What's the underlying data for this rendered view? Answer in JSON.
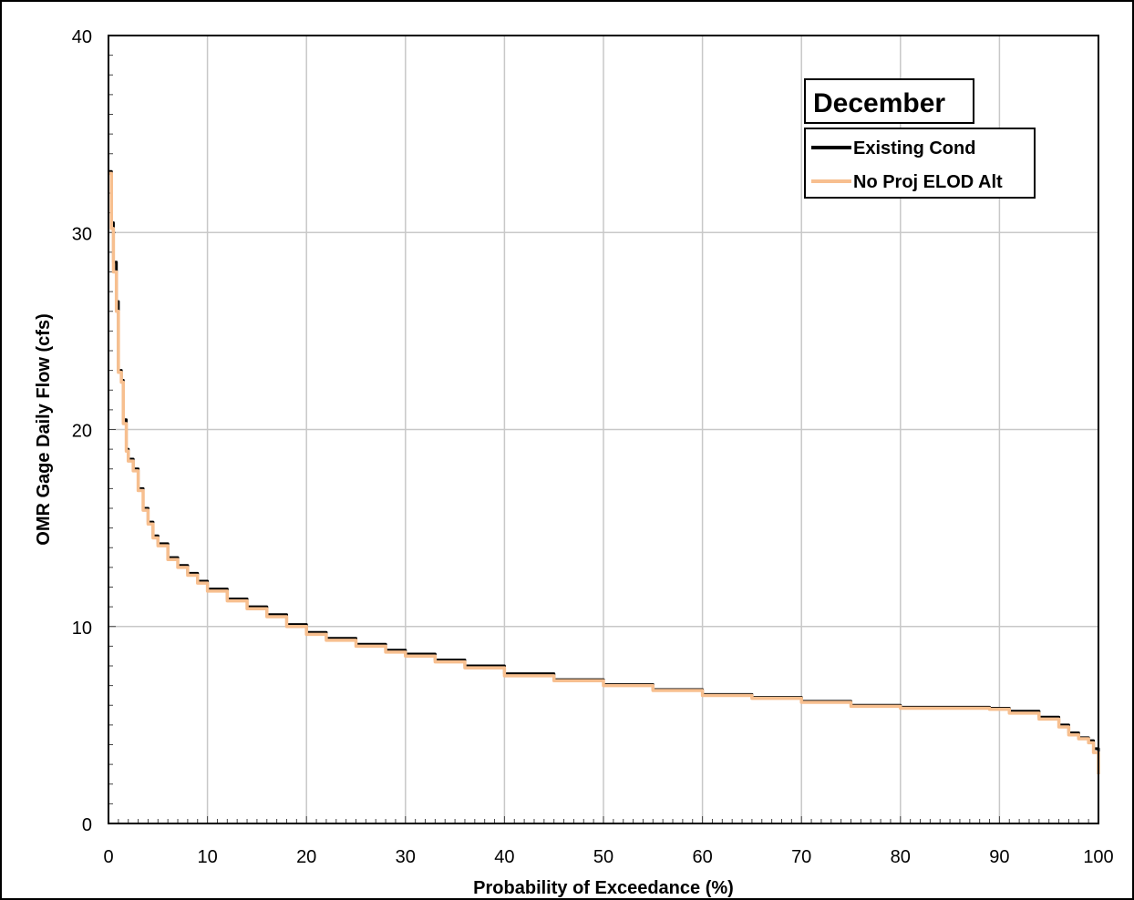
{
  "chart_data": {
    "type": "line",
    "title": "December",
    "xlabel": "Probability of Exceedance (%)",
    "ylabel": "OMR Gage Daily Flow (cfs)",
    "xlim": [
      0,
      100
    ],
    "ylim": [
      0,
      40
    ],
    "x_ticks": [
      "0",
      "10",
      "20",
      "30",
      "40",
      "50",
      "60",
      "70",
      "80",
      "90",
      "100"
    ],
    "y_ticks": [
      "0",
      "10",
      "20",
      "30",
      "40"
    ],
    "grid": true,
    "legend": "top-right",
    "series": [
      {
        "name": "Existing Cond",
        "color": "#000000",
        "x": [
          0,
          0.3,
          0.5,
          0.8,
          1.0,
          1.3,
          1.5,
          1.8,
          2.0,
          2.5,
          3.0,
          3.5,
          4.0,
          4.5,
          5.0,
          6.0,
          7.0,
          8.0,
          9.0,
          10,
          12,
          14,
          16,
          18,
          20,
          22,
          25,
          28,
          30,
          33,
          36,
          40,
          45,
          50,
          55,
          60,
          65,
          70,
          75,
          80,
          85,
          89,
          91,
          94,
          96,
          97,
          98,
          99,
          99.5,
          100
        ],
        "y": [
          33.1,
          30.5,
          28.5,
          26.5,
          23.0,
          22.5,
          20.5,
          19.0,
          18.5,
          18.0,
          17.0,
          16.0,
          15.3,
          14.6,
          14.2,
          13.5,
          13.1,
          12.7,
          12.3,
          11.9,
          11.4,
          11.0,
          10.6,
          10.1,
          9.7,
          9.4,
          9.1,
          8.8,
          8.6,
          8.3,
          8.0,
          7.6,
          7.3,
          7.05,
          6.8,
          6.55,
          6.4,
          6.2,
          6.0,
          5.9,
          5.9,
          5.85,
          5.7,
          5.4,
          5.0,
          4.6,
          4.35,
          4.2,
          3.8,
          2.6
        ]
      },
      {
        "name": "No Proj ELOD Alt",
        "color": "#f7bf8f",
        "x": [
          0,
          0.3,
          0.5,
          0.8,
          1.0,
          1.3,
          1.5,
          1.8,
          2.0,
          2.5,
          3.0,
          3.5,
          4.0,
          4.5,
          5.0,
          6.0,
          7.0,
          8.0,
          9.0,
          10,
          12,
          14,
          16,
          18,
          20,
          22,
          25,
          28,
          30,
          33,
          36,
          40,
          45,
          50,
          55,
          60,
          65,
          70,
          75,
          80,
          85,
          89,
          91,
          94,
          96,
          97,
          98,
          99,
          99.5,
          100
        ],
        "y": [
          33.0,
          30.2,
          28.0,
          26.0,
          22.9,
          22.4,
          20.3,
          18.9,
          18.4,
          17.9,
          16.9,
          15.9,
          15.2,
          14.5,
          14.1,
          13.4,
          13.0,
          12.6,
          12.2,
          11.8,
          11.3,
          10.9,
          10.5,
          10.0,
          9.6,
          9.3,
          9.0,
          8.7,
          8.5,
          8.2,
          7.9,
          7.5,
          7.25,
          7.0,
          6.75,
          6.5,
          6.35,
          6.15,
          5.95,
          5.85,
          5.85,
          5.8,
          5.6,
          5.3,
          4.9,
          4.5,
          4.3,
          4.1,
          3.6,
          2.5
        ]
      }
    ]
  }
}
